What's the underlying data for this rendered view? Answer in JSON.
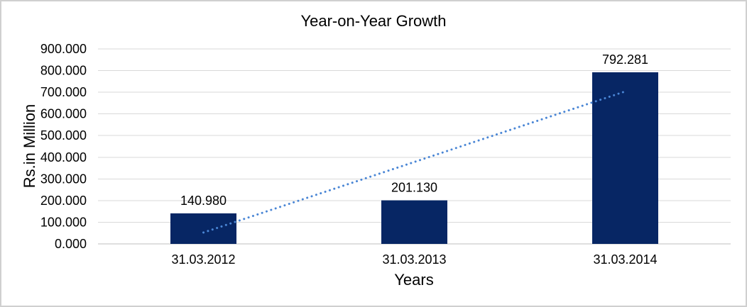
{
  "chart_data": {
    "type": "bar",
    "title": "Year-on-Year Growth",
    "xlabel": "Years",
    "ylabel": "Rs.in Million",
    "categories": [
      "31.03.2012",
      "31.03.2013",
      "31.03.2014"
    ],
    "values": [
      140.98,
      201.13,
      792.281
    ],
    "value_labels": [
      "140.980",
      "201.130",
      "792.281"
    ],
    "ylim": [
      0,
      900
    ],
    "ytick_step": 100,
    "ytick_values": [
      0,
      100,
      200,
      300,
      400,
      500,
      600,
      700,
      800,
      900
    ],
    "ytick_labels": [
      "0.000",
      "100.000",
      "200.000",
      "300.000",
      "400.000",
      "500.000",
      "600.000",
      "700.000",
      "800.000",
      "900.000"
    ],
    "grid": true,
    "legend": "none",
    "trendline": {
      "type": "linear",
      "style": "dotted",
      "points": [
        {
          "category_index": 0,
          "value": 52.5
        },
        {
          "category_index": 2,
          "value": 703.8
        }
      ]
    },
    "colors": {
      "bar": "#072664",
      "trendline": "#4a86d5",
      "gridline": "#d9d9d9",
      "axis_line": "#bfbfbf",
      "text": "#000000",
      "background": "#ffffff",
      "border": "#d0d0d0"
    }
  }
}
